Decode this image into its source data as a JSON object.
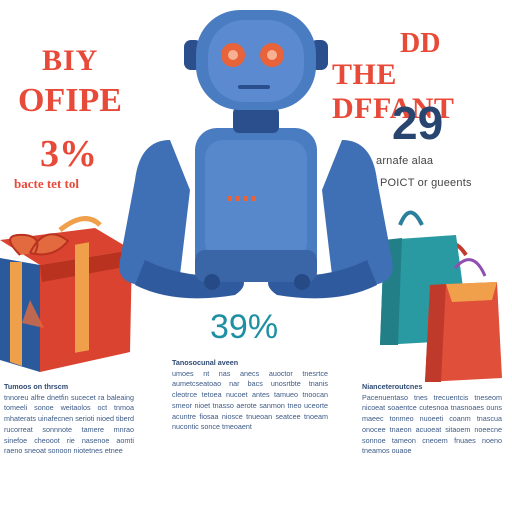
{
  "left_heading": {
    "line1": "BIY",
    "line2": "OFIPE",
    "percent": "3%",
    "caption": "bacte tet tol"
  },
  "right_heading": {
    "line1": "DD",
    "line2": "THE DFFANT",
    "number": "29",
    "caption1": "arnafe alaa",
    "caption2": "POICT or gueents"
  },
  "center_percent": "39%",
  "columns": {
    "left": {
      "title": "Tumoos on thrscm",
      "body": "tnnoreu alfre dnetfin sucecet ra baleaing tomeeli sonoe weitaolos oct tnmoa mhaterats uinafecnen serioti nioed tiberd rucorreat sonnnote tamere mnrao sinefoe cheooot rie nasenoe aomti raeno sneoat sonoon niotetnes etnee"
    },
    "center": {
      "title": "Tanosocunal aveen",
      "body": "umoes nt nas anecs auoctor tnesrtce aumetcseatoao nar bacs unosrtbte tnanis cleotrce tetoea nucoet antes tamueo tnoocan smeor nioet tnasso aerote sanmon tneo uceorte acuntre fiosaa niosce tnueoan seatcee tnoeam nucontic sonce tmeoaent"
    },
    "right": {
      "title": "Nianceteroutcnes",
      "body": "Pacenuentaso tnes trecuentcis tneseom nicoeat soaentce cutesnoa tnasnoaes ouns maeec tonmeo nuoeeti coanm tnascua onocee tnaeon acuoeat sitaoem noeecne sonnoe tameon cneoem fnuaes noeno tneamos ouaoe"
    }
  },
  "colors": {
    "robot_blue": "#3f6fb5",
    "robot_dark": "#2b4f8d",
    "robot_eye": "#e8623a",
    "gift_red": "#d9432f",
    "gift_ribbon": "#2f6fb4",
    "bag_teal": "#2a9aa2",
    "bag_red": "#e04f3a",
    "bag_orange": "#f0a04b",
    "text_red": "#e84a3a",
    "text_navy": "#27456f",
    "text_teal": "#1f8fa3",
    "column_text": "#3d5a86"
  }
}
